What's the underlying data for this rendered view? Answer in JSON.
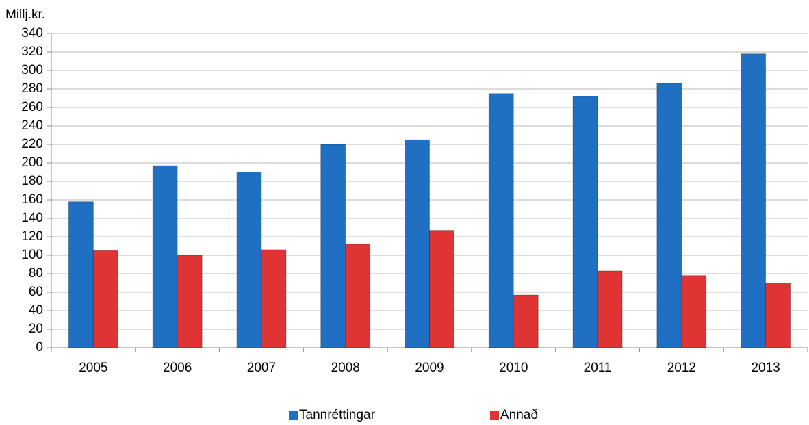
{
  "chart_data": {
    "type": "bar",
    "y_label": "Millj.kr.",
    "categories": [
      "2005",
      "2006",
      "2007",
      "2008",
      "2009",
      "2010",
      "2011",
      "2012",
      "2013"
    ],
    "series": [
      {
        "name": "Tannréttingar",
        "color": "#1f6fc2",
        "values": [
          158,
          197,
          190,
          220,
          225,
          275,
          272,
          286,
          318
        ]
      },
      {
        "name": "Annað",
        "color": "#e03333",
        "values": [
          105,
          100,
          106,
          112,
          127,
          57,
          83,
          78,
          70
        ]
      }
    ],
    "ylim": [
      0,
      340
    ],
    "yticks": [
      0,
      20,
      40,
      60,
      80,
      100,
      120,
      140,
      160,
      180,
      200,
      220,
      240,
      260,
      280,
      300,
      320,
      340
    ],
    "grid": true,
    "legend": "bottom"
  }
}
